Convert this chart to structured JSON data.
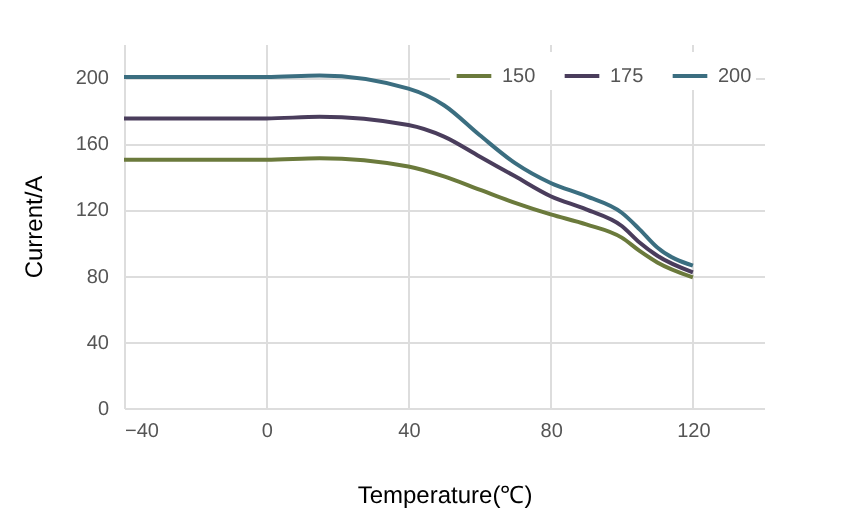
{
  "chart_data": {
    "type": "line",
    "xlabel": "Temperature(℃)",
    "ylabel": "Current/A",
    "x": [
      -40,
      0,
      15,
      40,
      50,
      60,
      70,
      80,
      90,
      100,
      105,
      110,
      120
    ],
    "series": [
      {
        "name": "150",
        "color": "#6b7a3c",
        "values": [
          150,
          150,
          151,
          146,
          140,
          132,
          124,
          117,
          111,
          103,
          95,
          88,
          79
        ]
      },
      {
        "name": "175",
        "color": "#4a3d5c",
        "values": [
          175,
          175,
          176,
          171,
          164,
          152,
          140,
          128,
          120,
          110,
          100,
          92,
          82
        ]
      },
      {
        "name": "200",
        "color": "#3b6e80",
        "values": [
          200,
          200,
          201,
          193,
          183,
          165,
          148,
          136,
          128,
          118,
          108,
          97,
          86
        ]
      }
    ],
    "xlim": [
      -40,
      140
    ],
    "xticks": [
      -40,
      0,
      40,
      80,
      120
    ],
    "ylim": [
      0,
      220
    ],
    "yticks": [
      0,
      40,
      80,
      120,
      160,
      200
    ],
    "grid": true,
    "legend": "top right",
    "marker": "none",
    "line_style": "solid"
  }
}
